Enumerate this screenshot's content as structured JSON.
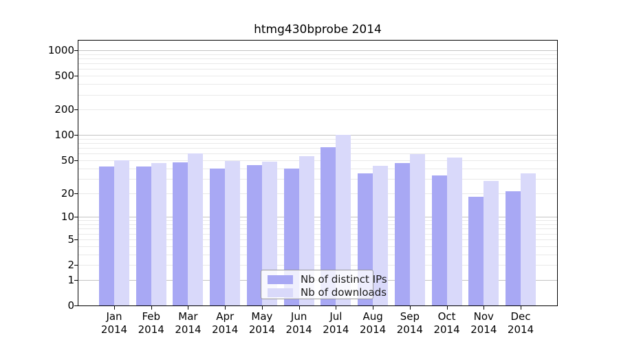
{
  "chart": {
    "title": "htmg430bprobe 2014",
    "legend": [
      "Nb of distinct IPs",
      "Nb of downloads"
    ]
  },
  "chart_data": {
    "type": "bar",
    "title": "htmg430bprobe 2014",
    "categories": [
      "Jan",
      "Feb",
      "Mar",
      "Apr",
      "May",
      "Jun",
      "Jul",
      "Aug",
      "Sep",
      "Oct",
      "Nov",
      "Dec"
    ],
    "x_year": "2014",
    "series": [
      {
        "name": "Nb of distinct IPs",
        "color": "#a8a8f4",
        "values": [
          42,
          42,
          47,
          40,
          44,
          40,
          72,
          35,
          46,
          33,
          18,
          21
        ]
      },
      {
        "name": "Nb of downloads",
        "color": "#d9d9fa",
        "values": [
          50,
          46,
          60,
          49,
          48,
          56,
          100,
          43,
          59,
          54,
          28,
          35
        ]
      }
    ],
    "yticks": [
      0,
      1,
      2,
      5,
      10,
      20,
      50,
      100,
      200,
      500,
      1000
    ],
    "yscale": "log-like (position ~ log10(1+v)), 0 at baseline",
    "ylim": [
      0,
      1400
    ],
    "grid": {
      "major_at": [
        1,
        10,
        100,
        1000
      ],
      "minor_at": "2-9 of each decade"
    },
    "legend_position": "lower center inside plot",
    "colors": {
      "major_grid": "#c3c3c3",
      "minor_grid": "#e9e9e9",
      "text": "#000000"
    }
  }
}
